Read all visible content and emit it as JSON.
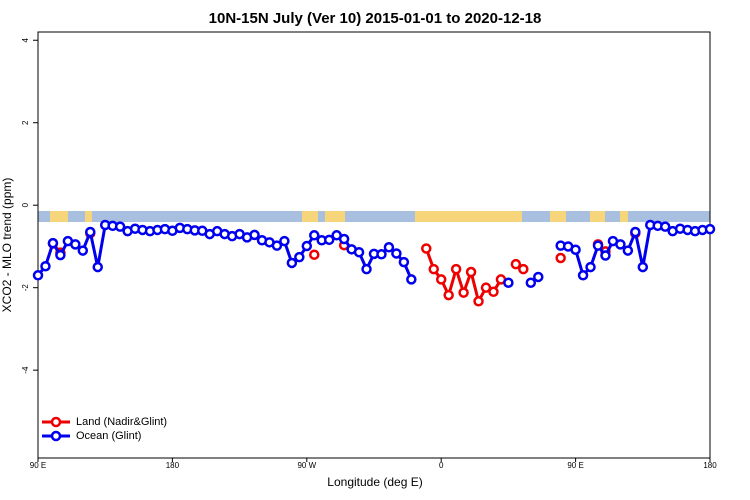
{
  "chart_data": {
    "type": "line",
    "title": "10N-15N July (Ver 10)   2015-01-01 to 2020-12-18",
    "xlabel": "Longitude (deg E)",
    "ylabel": "XCO2 - MLO trend (ppm)",
    "xlim": [
      90,
      540
    ],
    "ylim": [
      -6.13,
      4.2
    ],
    "xticks": [
      {
        "value": 90,
        "label": "90 E"
      },
      {
        "value": 180,
        "label": "180"
      },
      {
        "value": 270,
        "label": "90 W"
      },
      {
        "value": 360,
        "label": "0"
      },
      {
        "value": 450,
        "label": "90 E"
      },
      {
        "value": 540,
        "label": "180"
      }
    ],
    "yticks": [
      -4,
      -2,
      0,
      2,
      4
    ],
    "legend": "lower left",
    "x": [
      90,
      95,
      100,
      105,
      110,
      115,
      120,
      125,
      130,
      135,
      140,
      145,
      150,
      155,
      160,
      165,
      170,
      175,
      180,
      185,
      190,
      195,
      200,
      205,
      210,
      215,
      220,
      225,
      230,
      235,
      240,
      245,
      250,
      255,
      260,
      265,
      270,
      275,
      280,
      285,
      290,
      295,
      300,
      305,
      310,
      315,
      320,
      325,
      330,
      335,
      340,
      345,
      350,
      355,
      360,
      365,
      370,
      375,
      380,
      385,
      390,
      395,
      400,
      405,
      410,
      415,
      420,
      425,
      430,
      435,
      440,
      445,
      450,
      455,
      460,
      465,
      470,
      475,
      480,
      485,
      490,
      495,
      500,
      505,
      510,
      515,
      520,
      525,
      530,
      535,
      540
    ],
    "series": [
      {
        "name": "Land (Nadir&Glint)",
        "color": "#ee0000",
        "values": [
          null,
          null,
          -0.93,
          -1.15,
          null,
          null,
          null,
          -0.68,
          null,
          null,
          null,
          null,
          null,
          null,
          null,
          null,
          null,
          null,
          null,
          null,
          null,
          null,
          null,
          null,
          null,
          null,
          null,
          null,
          null,
          null,
          null,
          null,
          null,
          null,
          null,
          null,
          null,
          -1.2,
          null,
          null,
          null,
          -0.97,
          null,
          null,
          null,
          null,
          null,
          null,
          null,
          null,
          null,
          null,
          -1.05,
          -1.55,
          -1.8,
          -2.18,
          -1.55,
          -2.12,
          -1.62,
          -2.33,
          -2.0,
          -2.1,
          -1.8,
          null,
          -1.43,
          -1.55,
          null,
          null,
          null,
          null,
          -1.28,
          null,
          null,
          null,
          null,
          -0.95,
          -1.12,
          null,
          null,
          null,
          -0.68,
          null,
          null,
          null,
          null,
          null,
          null,
          null,
          null,
          null,
          null
        ]
      },
      {
        "name": "Ocean (Glint)",
        "color": "#0000ee",
        "values": [
          -1.7,
          -1.48,
          -0.92,
          -1.21,
          -0.87,
          -0.95,
          -1.1,
          -0.65,
          -1.5,
          -0.48,
          -0.5,
          -0.52,
          -0.63,
          -0.57,
          -0.6,
          -0.63,
          -0.6,
          -0.58,
          -0.62,
          -0.55,
          -0.58,
          -0.61,
          -0.62,
          -0.7,
          -0.63,
          -0.7,
          -0.75,
          -0.7,
          -0.78,
          -0.72,
          -0.85,
          -0.9,
          -0.98,
          -0.87,
          -1.4,
          -1.26,
          -0.99,
          -0.73,
          -0.85,
          -0.84,
          -0.73,
          -0.82,
          -1.07,
          -1.14,
          -1.55,
          -1.18,
          -1.19,
          -1.02,
          -1.17,
          -1.38,
          -1.8,
          null,
          null,
          null,
          null,
          null,
          null,
          null,
          null,
          null,
          null,
          null,
          null,
          -1.88,
          null,
          null,
          -1.88,
          -1.74,
          null,
          null,
          -0.98,
          -1.0,
          -1.08,
          -1.7,
          -1.5,
          -0.98,
          -1.22,
          -0.87,
          -0.95,
          -1.1,
          -0.65,
          -1.5,
          -0.48,
          -0.5,
          -0.52,
          -0.63,
          -0.57,
          -0.6,
          -0.63,
          -0.6,
          -0.58
        ]
      }
    ]
  }
}
